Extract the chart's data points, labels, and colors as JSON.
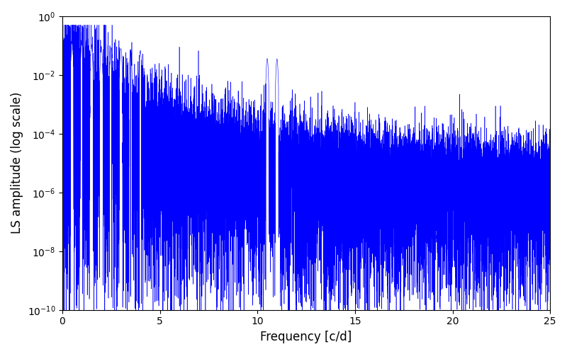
{
  "xlabel": "Frequency [c/d]",
  "ylabel": "LS amplitude (log scale)",
  "line_color": "blue",
  "xlim": [
    0,
    25
  ],
  "ylim": [
    1e-10,
    1
  ],
  "background_color": "#ffffff",
  "figsize": [
    8.0,
    5.0
  ],
  "dpi": 100,
  "seed": 12345,
  "n_points": 15000,
  "freq_max": 25.0
}
